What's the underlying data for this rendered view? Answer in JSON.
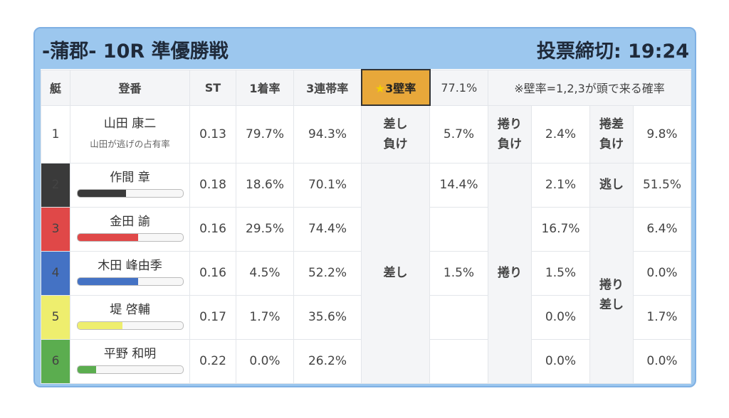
{
  "header": {
    "title": "-蒲郡- 10R 準優勝戦",
    "deadline": "投票締切: 19:24"
  },
  "columns": {
    "boat": "艇",
    "racer": "登番",
    "st": "ST",
    "first": "1着率",
    "trio": "3連帯率",
    "wall_star": "★",
    "wall": "3壁率",
    "wall_value": "77.1%",
    "note": "※壁率=1,2,3が頭で来る確率"
  },
  "row1": {
    "boat": "1",
    "name": "山田 康二",
    "sub": "山田が逃げの占有率",
    "st": "0.13",
    "first": "79.7%",
    "trio": "94.3%",
    "label_a_1": "差し",
    "label_a_2": "負け",
    "val_a": "5.7%",
    "label_b_1": "捲り",
    "label_b_2": "負け",
    "val_b": "2.4%",
    "label_c_1": "捲差",
    "label_c_2": "負け",
    "val_c": "9.8%"
  },
  "boats": [
    {
      "boat": "2",
      "name": "作間 章",
      "st": "0.18",
      "first": "18.6%",
      "trio": "70.1%",
      "sashi": "14.4%",
      "makuri": "2.1%",
      "other": "51.5%",
      "bar_pct": 0.46,
      "bar_color": "#3a3a3a"
    },
    {
      "boat": "3",
      "name": "金田 諭",
      "st": "0.16",
      "first": "29.5%",
      "trio": "74.4%",
      "sashi": "",
      "makuri": "16.7%",
      "other": "6.4%",
      "bar_pct": 0.58,
      "bar_color": "#e04848"
    },
    {
      "boat": "4",
      "name": "木田 峰由季",
      "st": "0.16",
      "first": "4.5%",
      "trio": "52.2%",
      "sashi": "1.5%",
      "makuri": "1.5%",
      "other": "0.0%",
      "bar_pct": 0.58,
      "bar_color": "#4472c4"
    },
    {
      "boat": "5",
      "name": "堤 啓輔",
      "st": "0.17",
      "first": "1.7%",
      "trio": "35.6%",
      "sashi": "",
      "makuri": "0.0%",
      "other": "1.7%",
      "bar_pct": 0.43,
      "bar_color": "#eeee6e"
    },
    {
      "boat": "6",
      "name": "平野 和明",
      "st": "0.22",
      "first": "0.0%",
      "trio": "26.2%",
      "sashi": "",
      "makuri": "0.0%",
      "other": "0.0%",
      "bar_pct": 0.18,
      "bar_color": "#5bad4f"
    }
  ],
  "labels": {
    "sashi": "差し",
    "makuri": "捲り",
    "nige": "逃し",
    "makuri_sashi_1": "捲り",
    "makuri_sashi_2": "差し"
  }
}
